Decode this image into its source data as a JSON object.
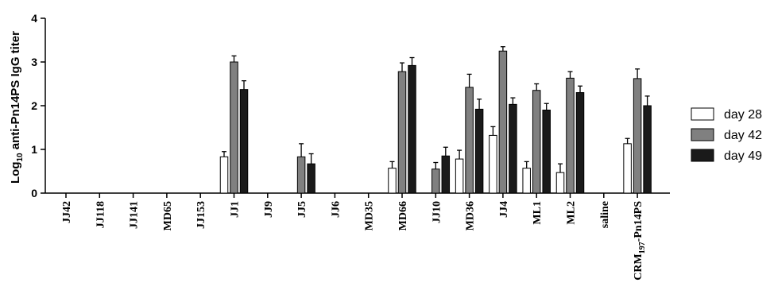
{
  "chart_data": {
    "type": "bar",
    "ylabel": "Log10 anti-Pn14PS IgG titer",
    "ylabel_parts": {
      "prefix": "Log",
      "sub": "10",
      "rest": " anti-Pn14PS IgG titer"
    },
    "ylim": [
      0,
      4
    ],
    "yticks": [
      0,
      1,
      2,
      3,
      4
    ],
    "grid": false,
    "legend_position": "right",
    "categories": [
      "JJ42",
      "JJ118",
      "JJ141",
      "MD65",
      "JJ153",
      "JJ1",
      "JJ9",
      "JJ5",
      "JJ6",
      "MD35",
      "MD66",
      "JJ10",
      "MD36",
      "JJ4",
      "ML1",
      "ML2",
      "saline",
      "CRM197-Pn14PS"
    ],
    "last_category_parts": {
      "prefix": "CRM",
      "sub": "197",
      "rest": "-Pn14PS"
    },
    "series": [
      {
        "name": "day 28",
        "color": "#ffffff",
        "values": [
          null,
          null,
          null,
          null,
          null,
          0.83,
          null,
          null,
          null,
          null,
          0.57,
          null,
          0.78,
          1.32,
          0.57,
          0.47,
          null,
          1.13
        ],
        "errors": [
          null,
          null,
          null,
          null,
          null,
          0.12,
          null,
          null,
          null,
          null,
          0.15,
          null,
          0.2,
          0.2,
          0.15,
          0.2,
          null,
          0.12
        ]
      },
      {
        "name": "day 42",
        "color": "#808080",
        "values": [
          null,
          null,
          null,
          null,
          null,
          3.0,
          null,
          0.83,
          null,
          null,
          2.78,
          0.55,
          2.42,
          3.25,
          2.35,
          2.63,
          null,
          2.62
        ],
        "errors": [
          null,
          null,
          null,
          null,
          null,
          0.14,
          null,
          0.3,
          null,
          null,
          0.2,
          0.15,
          0.3,
          0.1,
          0.15,
          0.15,
          null,
          0.22
        ]
      },
      {
        "name": "day 49",
        "color": "#1a1a1a",
        "values": [
          null,
          null,
          null,
          null,
          null,
          2.37,
          null,
          0.67,
          null,
          null,
          2.92,
          0.85,
          1.92,
          2.03,
          1.9,
          2.3,
          null,
          2.0
        ],
        "errors": [
          null,
          null,
          null,
          null,
          null,
          0.2,
          null,
          0.23,
          null,
          null,
          0.18,
          0.2,
          0.23,
          0.15,
          0.15,
          0.15,
          null,
          0.22
        ]
      }
    ]
  }
}
